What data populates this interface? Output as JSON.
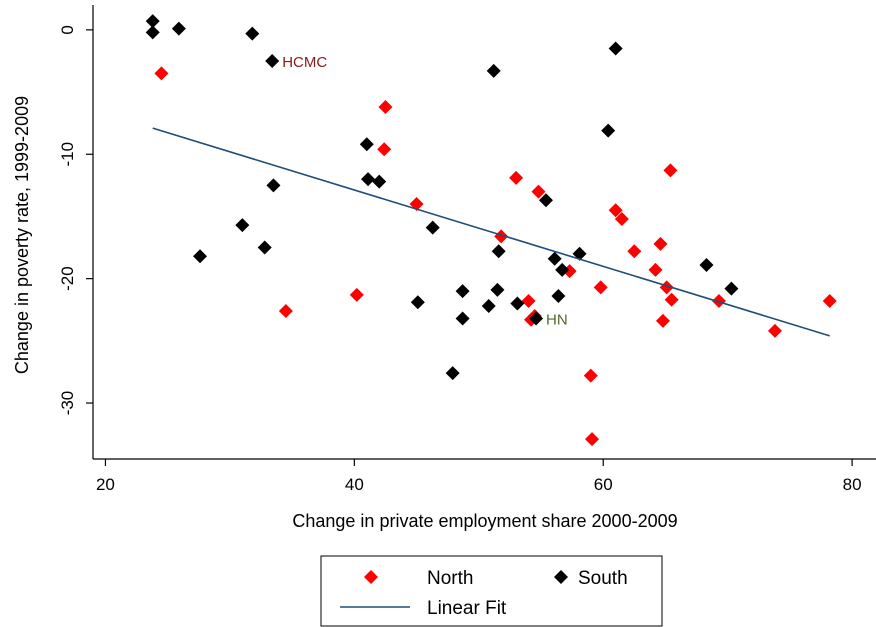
{
  "colors": {
    "north": "#ff0000",
    "south": "#000000",
    "fit": "#1f4e79",
    "hcmc_label": "#8b1a1a",
    "hn_label": "#4f6b2a"
  },
  "chart_data": {
    "type": "scatter",
    "xlabel": "Change in private employment share 2000-2009",
    "ylabel": "Change in poverty rate, 1999-2009",
    "xlim": [
      19,
      82
    ],
    "ylim": [
      -34.5,
      2
    ],
    "xticks": [
      20,
      40,
      60,
      80
    ],
    "yticks": [
      0,
      -10,
      -20,
      -30
    ],
    "grid": false,
    "legend_position": "bottom",
    "series": [
      {
        "name": "North",
        "marker": "diamond",
        "points": [
          [
            24.5,
            -3.5
          ],
          [
            34.5,
            -22.6
          ],
          [
            40.2,
            -21.3
          ],
          [
            42.5,
            -6.2
          ],
          [
            42.4,
            -9.6
          ],
          [
            45.0,
            -14.0
          ],
          [
            51.8,
            -16.6
          ],
          [
            53.0,
            -11.9
          ],
          [
            54.0,
            -21.8
          ],
          [
            54.2,
            -23.3
          ],
          [
            54.5,
            -23.0
          ],
          [
            54.8,
            -13.0
          ],
          [
            57.3,
            -19.4
          ],
          [
            59.0,
            -27.8
          ],
          [
            59.1,
            -32.9
          ],
          [
            59.8,
            -20.7
          ],
          [
            61.0,
            -14.5
          ],
          [
            61.5,
            -15.2
          ],
          [
            62.5,
            -17.8
          ],
          [
            64.2,
            -19.3
          ],
          [
            64.6,
            -17.2
          ],
          [
            64.8,
            -23.4
          ],
          [
            65.1,
            -20.7
          ],
          [
            65.5,
            -21.7
          ],
          [
            65.4,
            -11.3
          ],
          [
            69.3,
            -21.8
          ],
          [
            73.8,
            -24.2
          ],
          [
            78.2,
            -21.8
          ]
        ]
      },
      {
        "name": "South",
        "marker": "diamond",
        "points": [
          [
            23.8,
            0.7
          ],
          [
            23.8,
            -0.2
          ],
          [
            25.9,
            0.1
          ],
          [
            27.6,
            -18.2
          ],
          [
            31.0,
            -15.7
          ],
          [
            31.8,
            -0.3
          ],
          [
            32.8,
            -17.5
          ],
          [
            33.4,
            -2.5
          ],
          [
            33.5,
            -12.5
          ],
          [
            41.0,
            -9.2
          ],
          [
            41.1,
            -12.0
          ],
          [
            42.0,
            -12.2
          ],
          [
            45.1,
            -21.9
          ],
          [
            46.3,
            -15.9
          ],
          [
            47.9,
            -27.6
          ],
          [
            48.7,
            -21.0
          ],
          [
            48.7,
            -23.2
          ],
          [
            50.8,
            -22.2
          ],
          [
            51.2,
            -3.3
          ],
          [
            51.5,
            -20.9
          ],
          [
            51.6,
            -17.8
          ],
          [
            53.1,
            -22.0
          ],
          [
            54.6,
            -23.2
          ],
          [
            55.4,
            -13.7
          ],
          [
            56.1,
            -18.4
          ],
          [
            56.4,
            -21.4
          ],
          [
            56.7,
            -19.3
          ],
          [
            58.1,
            -18.0
          ],
          [
            60.4,
            -8.1
          ],
          [
            61.0,
            -1.5
          ],
          [
            68.3,
            -18.9
          ],
          [
            70.3,
            -20.8
          ]
        ]
      }
    ],
    "fit_series": {
      "name": "Linear Fit",
      "x": [
        23.8,
        78.2
      ],
      "y": [
        -7.9,
        -24.6
      ]
    },
    "annotations": [
      {
        "text": "HCMC",
        "x": 33.4,
        "y": -2.5,
        "color_key": "hcmc_label"
      },
      {
        "text": "HN",
        "x": 54.6,
        "y": -23.2,
        "color_key": "hn_label"
      }
    ],
    "legend": {
      "north_label": "North",
      "south_label": "South",
      "fit_label": "Linear Fit"
    }
  }
}
